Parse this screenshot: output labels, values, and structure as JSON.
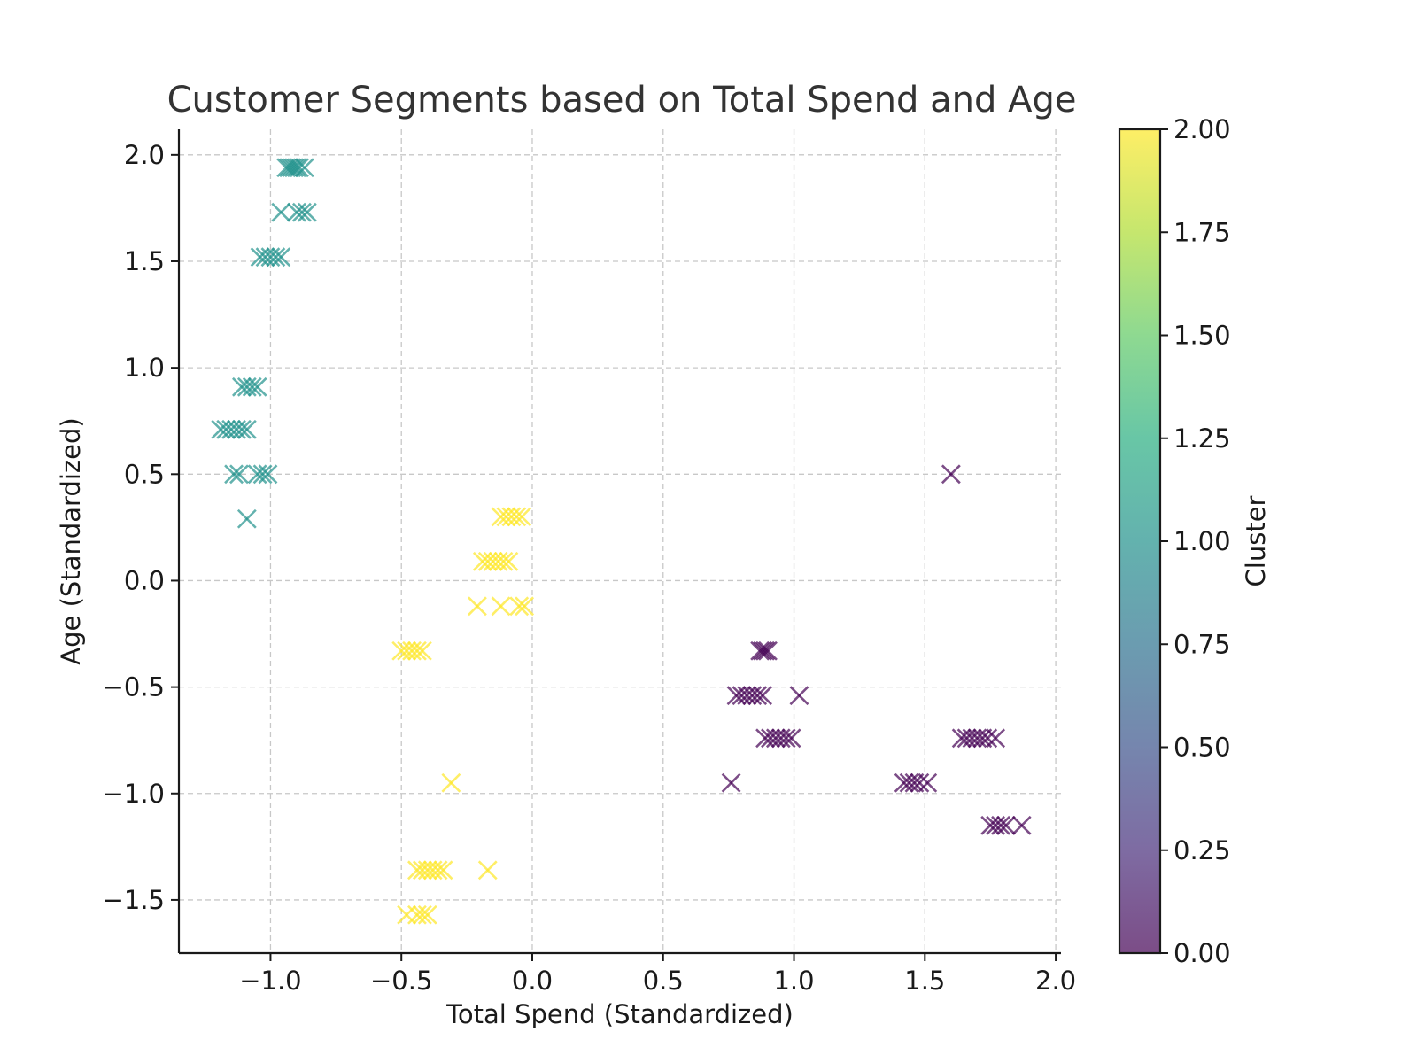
{
  "chart_data": {
    "type": "scatter",
    "title": "Customer Segments based on Total Spend and Age",
    "xlabel": "Total Spend (Standardized)",
    "ylabel": "Age (Standardized)",
    "xlim": [
      -1.35,
      2.02
    ],
    "ylim": [
      -1.75,
      2.12
    ],
    "xticks": [
      -1.0,
      -0.5,
      0.0,
      0.5,
      1.0,
      1.5,
      2.0
    ],
    "xtick_labels": [
      "−1.0",
      "−0.5",
      "0.0",
      "0.5",
      "1.0",
      "1.5",
      "2.0"
    ],
    "yticks": [
      -1.5,
      -1.0,
      -0.5,
      0.0,
      0.5,
      1.0,
      1.5,
      2.0
    ],
    "ytick_labels": [
      "−1.5",
      "−1.0",
      "−0.5",
      "0.0",
      "0.5",
      "1.0",
      "1.5",
      "2.0"
    ],
    "grid": true,
    "marker": "x",
    "colormap": "viridis",
    "colorbar": {
      "label": "Cluster",
      "range": [
        0,
        2
      ],
      "ticks": [
        0.0,
        0.25,
        0.5,
        0.75,
        1.0,
        1.25,
        1.5,
        1.75,
        2.0
      ],
      "tick_labels": [
        "0.00",
        "0.25",
        "0.50",
        "0.75",
        "1.00",
        "1.25",
        "1.50",
        "1.75",
        "2.00"
      ],
      "colors": [
        "#440154",
        "#3b528b",
        "#21918c",
        "#5ec962",
        "#fde725"
      ]
    },
    "series": [
      {
        "cluster": 0,
        "color": "#440154",
        "points": [
          [
            0.87,
            -0.33
          ],
          [
            0.88,
            -0.33
          ],
          [
            0.89,
            -0.33
          ],
          [
            0.9,
            -0.33
          ],
          [
            0.78,
            -0.54
          ],
          [
            0.8,
            -0.54
          ],
          [
            0.82,
            -0.54
          ],
          [
            0.84,
            -0.54
          ],
          [
            0.86,
            -0.54
          ],
          [
            0.88,
            -0.54
          ],
          [
            1.02,
            -0.54
          ],
          [
            0.89,
            -0.74
          ],
          [
            0.91,
            -0.74
          ],
          [
            0.93,
            -0.74
          ],
          [
            0.95,
            -0.74
          ],
          [
            0.97,
            -0.74
          ],
          [
            0.99,
            -0.74
          ],
          [
            1.64,
            -0.74
          ],
          [
            1.66,
            -0.74
          ],
          [
            1.68,
            -0.74
          ],
          [
            1.7,
            -0.74
          ],
          [
            1.72,
            -0.74
          ],
          [
            1.74,
            -0.74
          ],
          [
            1.77,
            -0.74
          ],
          [
            0.76,
            -0.95
          ],
          [
            1.42,
            -0.95
          ],
          [
            1.44,
            -0.95
          ],
          [
            1.46,
            -0.95
          ],
          [
            1.48,
            -0.95
          ],
          [
            1.51,
            -0.95
          ],
          [
            1.6,
            0.5
          ],
          [
            1.75,
            -1.15
          ],
          [
            1.77,
            -1.15
          ],
          [
            1.79,
            -1.15
          ],
          [
            1.81,
            -1.15
          ],
          [
            1.87,
            -1.15
          ]
        ]
      },
      {
        "cluster": 1,
        "color": "#21918c",
        "points": [
          [
            -0.94,
            1.94
          ],
          [
            -0.93,
            1.94
          ],
          [
            -0.92,
            1.94
          ],
          [
            -0.91,
            1.94
          ],
          [
            -0.9,
            1.94
          ],
          [
            -0.89,
            1.94
          ],
          [
            -0.87,
            1.94
          ],
          [
            -0.96,
            1.73
          ],
          [
            -0.9,
            1.73
          ],
          [
            -0.88,
            1.73
          ],
          [
            -0.86,
            1.73
          ],
          [
            -1.04,
            1.52
          ],
          [
            -1.02,
            1.52
          ],
          [
            -1.0,
            1.52
          ],
          [
            -0.98,
            1.52
          ],
          [
            -0.96,
            1.52
          ],
          [
            -1.11,
            0.91
          ],
          [
            -1.09,
            0.91
          ],
          [
            -1.07,
            0.91
          ],
          [
            -1.05,
            0.91
          ],
          [
            -1.19,
            0.71
          ],
          [
            -1.17,
            0.71
          ],
          [
            -1.15,
            0.71
          ],
          [
            -1.13,
            0.71
          ],
          [
            -1.11,
            0.71
          ],
          [
            -1.09,
            0.71
          ],
          [
            -1.14,
            0.5
          ],
          [
            -1.12,
            0.5
          ],
          [
            -1.05,
            0.5
          ],
          [
            -1.03,
            0.5
          ],
          [
            -1.01,
            0.5
          ],
          [
            -1.09,
            0.29
          ]
        ]
      },
      {
        "cluster": 2,
        "color": "#fde725",
        "points": [
          [
            -0.12,
            0.3
          ],
          [
            -0.1,
            0.3
          ],
          [
            -0.08,
            0.3
          ],
          [
            -0.06,
            0.3
          ],
          [
            -0.04,
            0.3
          ],
          [
            -0.19,
            0.09
          ],
          [
            -0.17,
            0.09
          ],
          [
            -0.15,
            0.09
          ],
          [
            -0.13,
            0.09
          ],
          [
            -0.11,
            0.09
          ],
          [
            -0.09,
            0.09
          ],
          [
            -0.21,
            -0.12
          ],
          [
            -0.12,
            -0.12
          ],
          [
            -0.05,
            -0.12
          ],
          [
            -0.03,
            -0.12
          ],
          [
            -0.5,
            -0.33
          ],
          [
            -0.48,
            -0.33
          ],
          [
            -0.46,
            -0.33
          ],
          [
            -0.44,
            -0.33
          ],
          [
            -0.42,
            -0.33
          ],
          [
            -0.31,
            -0.95
          ],
          [
            -0.44,
            -1.36
          ],
          [
            -0.42,
            -1.36
          ],
          [
            -0.4,
            -1.36
          ],
          [
            -0.38,
            -1.36
          ],
          [
            -0.36,
            -1.36
          ],
          [
            -0.34,
            -1.36
          ],
          [
            -0.17,
            -1.36
          ],
          [
            -0.48,
            -1.57
          ],
          [
            -0.44,
            -1.57
          ],
          [
            -0.42,
            -1.57
          ],
          [
            -0.4,
            -1.57
          ]
        ]
      }
    ]
  }
}
